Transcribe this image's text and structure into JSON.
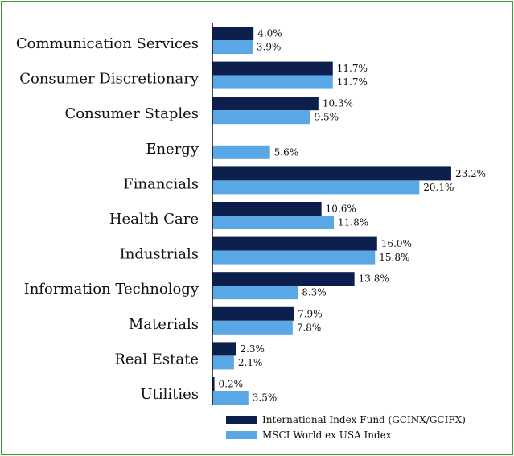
{
  "chart_data": {
    "type": "bar",
    "orientation": "horizontal",
    "categories": [
      "Communication Services",
      "Consumer Discretionary",
      "Consumer Staples",
      "Energy",
      "Financials",
      "Health Care",
      "Industrials",
      "Information Technology",
      "Materials",
      "Real Estate",
      "Utilities"
    ],
    "series": [
      {
        "name": "International Index Fund (GCINX/GCIFX)",
        "color": "#0d1f4d",
        "values": [
          4.0,
          11.7,
          10.3,
          null,
          23.2,
          10.6,
          16.0,
          13.8,
          7.9,
          2.3,
          0.2
        ],
        "labels": [
          "4.0%",
          "11.7%",
          "10.3%",
          "",
          "23.2%",
          "10.6%",
          "16.0%",
          "13.8%",
          "7.9%",
          "2.3%",
          "0.2%"
        ]
      },
      {
        "name": "MSCI World ex USA Index",
        "color": "#5aa7e6",
        "values": [
          3.9,
          11.7,
          9.5,
          5.6,
          20.1,
          11.8,
          15.8,
          8.3,
          7.8,
          2.1,
          3.5
        ],
        "labels": [
          "3.9%",
          "11.7%",
          "9.5%",
          "5.6%",
          "20.1%",
          "11.8%",
          "15.8%",
          "8.3%",
          "7.8%",
          "2.1%",
          "3.5%"
        ]
      }
    ],
    "xlim": [
      0,
      25
    ],
    "legend_position": "bottom-right",
    "grid": false,
    "title": "",
    "xlabel": "",
    "ylabel": ""
  },
  "colors": {
    "border": "#3d9a3d",
    "axis": "#111111"
  }
}
